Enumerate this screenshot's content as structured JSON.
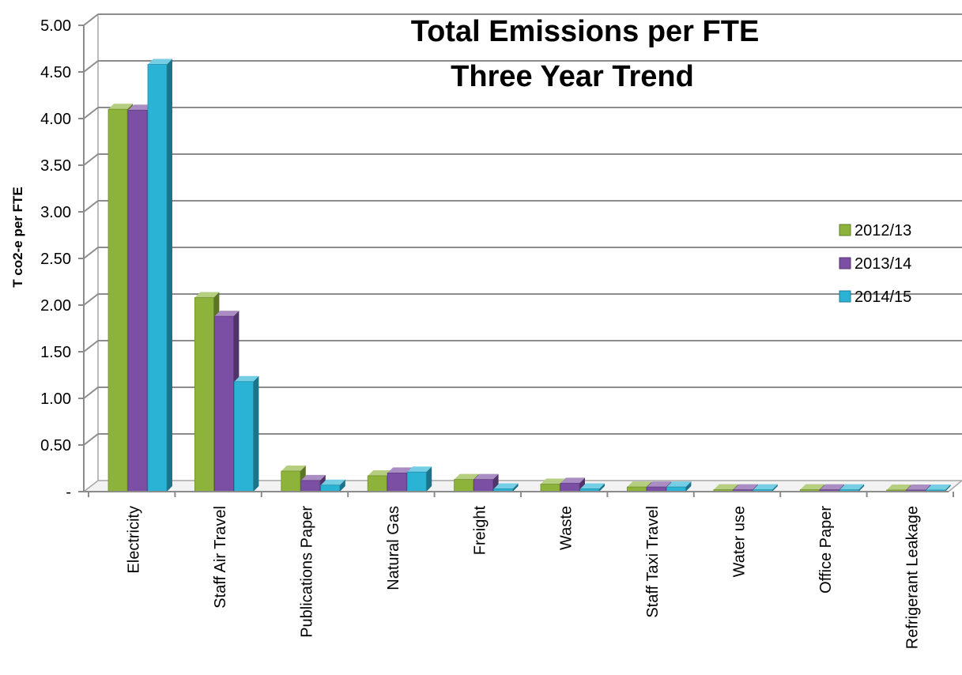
{
  "chart_data": {
    "type": "bar",
    "title": "Total Emissions per FTE",
    "subtitle": "Three Year Trend",
    "xlabel": "",
    "ylabel": "T co2-e per FTE",
    "ylim": [
      0,
      5
    ],
    "yticks": [
      "-",
      "0.50",
      "1.00",
      "1.50",
      "2.00",
      "2.50",
      "3.00",
      "3.50",
      "4.00",
      "4.50",
      "5.00"
    ],
    "grid": true,
    "legend_position": "right",
    "categories": [
      "Electricity",
      "Staff Air Travel",
      "Publications Paper",
      "Natural Gas",
      "Freight",
      "Waste",
      "Staff Taxi Travel",
      "Water use",
      "Office Paper",
      "Refrigerant Leakage"
    ],
    "series": [
      {
        "name": "2012/13",
        "color": "#8DB33A",
        "values": [
          4.1,
          2.08,
          0.22,
          0.17,
          0.13,
          0.08,
          0.05,
          0.02,
          0.02,
          0.01
        ]
      },
      {
        "name": "2013/14",
        "color": "#7B4FA3",
        "values": [
          4.09,
          1.88,
          0.12,
          0.2,
          0.13,
          0.09,
          0.05,
          0.02,
          0.02,
          0.01
        ]
      },
      {
        "name": "2014/15",
        "color": "#2BB3D6",
        "values": [
          4.58,
          1.18,
          0.07,
          0.21,
          0.03,
          0.03,
          0.05,
          0.02,
          0.02,
          0.01
        ]
      }
    ]
  }
}
